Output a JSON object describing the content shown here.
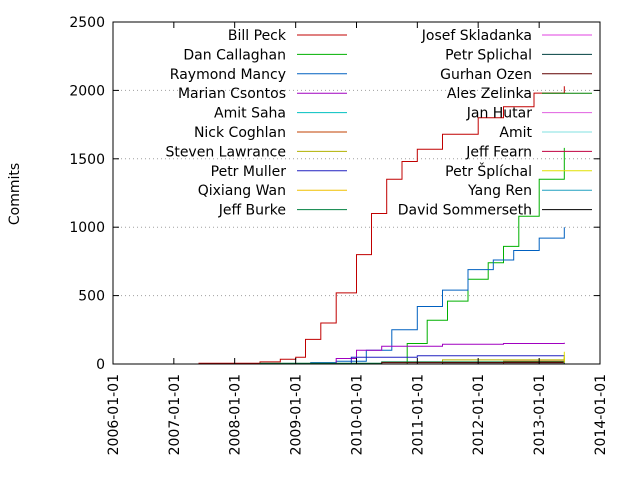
{
  "chart_data": {
    "type": "line",
    "title": "",
    "xlabel": "",
    "ylabel": "Commits",
    "xlim": [
      "2006-01-01",
      "2014-01-01"
    ],
    "ylim": [
      0,
      2500
    ],
    "x_ticks": [
      "2006-01-01",
      "2007-01-01",
      "2008-01-01",
      "2009-01-01",
      "2010-01-01",
      "2011-01-01",
      "2012-01-01",
      "2013-01-01",
      "2014-01-01"
    ],
    "y_ticks": [
      0,
      500,
      1000,
      1500,
      2000,
      2500
    ],
    "grid": "horizontal dotted at 500, 1000, 1500, 2000",
    "legend": "top, two columns",
    "series": [
      {
        "name": "Bill Peck",
        "color": "#c00000",
        "points": [
          [
            "2006-05-01",
            0
          ],
          [
            "2007-06-01",
            5
          ],
          [
            "2008-06-01",
            15
          ],
          [
            "2008-10-01",
            35
          ],
          [
            "2009-01-01",
            50
          ],
          [
            "2009-03-01",
            180
          ],
          [
            "2009-06-01",
            300
          ],
          [
            "2009-09-01",
            520
          ],
          [
            "2010-01-01",
            800
          ],
          [
            "2010-04-01",
            1100
          ],
          [
            "2010-07-01",
            1350
          ],
          [
            "2010-10-01",
            1480
          ],
          [
            "2011-01-01",
            1570
          ],
          [
            "2011-06-01",
            1680
          ],
          [
            "2012-01-01",
            1800
          ],
          [
            "2012-06-01",
            1880
          ],
          [
            "2012-12-01",
            1980
          ],
          [
            "2013-06-01",
            2030
          ]
        ]
      },
      {
        "name": "Dan Callaghan",
        "color": "#00b000",
        "points": [
          [
            "2010-09-01",
            0
          ],
          [
            "2010-11-01",
            150
          ],
          [
            "2011-03-01",
            320
          ],
          [
            "2011-07-01",
            460
          ],
          [
            "2011-11-01",
            620
          ],
          [
            "2012-03-01",
            740
          ],
          [
            "2012-06-01",
            860
          ],
          [
            "2012-09-01",
            1080
          ],
          [
            "2013-01-01",
            1350
          ],
          [
            "2013-06-01",
            1580
          ]
        ]
      },
      {
        "name": "Raymond Mancy",
        "color": "#0060c0",
        "points": [
          [
            "2009-01-01",
            0
          ],
          [
            "2009-04-01",
            10
          ],
          [
            "2009-09-01",
            20
          ],
          [
            "2010-03-01",
            100
          ],
          [
            "2010-08-01",
            250
          ],
          [
            "2011-01-01",
            420
          ],
          [
            "2011-06-01",
            540
          ],
          [
            "2011-11-01",
            690
          ],
          [
            "2012-04-01",
            760
          ],
          [
            "2012-08-01",
            830
          ],
          [
            "2013-01-01",
            920
          ],
          [
            "2013-06-01",
            1000
          ]
        ]
      },
      {
        "name": "Marian Csontos",
        "color": "#a000c0",
        "points": [
          [
            "2009-07-01",
            0
          ],
          [
            "2009-09-01",
            40
          ],
          [
            "2010-01-01",
            100
          ],
          [
            "2010-06-01",
            130
          ],
          [
            "2011-06-01",
            145
          ],
          [
            "2012-06-01",
            150
          ],
          [
            "2013-06-01",
            155
          ]
        ]
      },
      {
        "name": "Amit Saha",
        "color": "#00c0c0",
        "points": [
          [
            "2012-06-01",
            0
          ],
          [
            "2013-06-01",
            40
          ]
        ]
      },
      {
        "name": "Nick Coghlan",
        "color": "#c04000",
        "points": [
          [
            "2011-06-01",
            0
          ],
          [
            "2012-06-01",
            20
          ],
          [
            "2013-06-01",
            50
          ]
        ]
      },
      {
        "name": "Steven Lawrance",
        "color": "#b0b000",
        "points": [
          [
            "2009-01-01",
            0
          ],
          [
            "2011-06-01",
            30
          ],
          [
            "2013-06-01",
            60
          ]
        ]
      },
      {
        "name": "Petr Muller",
        "color": "#2020c0",
        "points": [
          [
            "2009-06-01",
            0
          ],
          [
            "2009-12-01",
            50
          ],
          [
            "2011-01-01",
            60
          ],
          [
            "2013-06-01",
            65
          ]
        ]
      },
      {
        "name": "Qixiang Wan",
        "color": "#f0c000",
        "points": [
          [
            "2012-06-01",
            0
          ],
          [
            "2013-06-01",
            30
          ]
        ]
      },
      {
        "name": "Jeff Burke",
        "color": "#008040",
        "points": [
          [
            "2006-05-01",
            0
          ],
          [
            "2008-06-01",
            5
          ],
          [
            "2010-06-01",
            15
          ],
          [
            "2013-06-01",
            25
          ]
        ]
      },
      {
        "name": "Josef Skladanka",
        "color": "#e040e0",
        "points": [
          [
            "2012-10-01",
            0
          ],
          [
            "2013-06-01",
            25
          ]
        ]
      },
      {
        "name": "Petr Splichal",
        "color": "#004040",
        "points": [
          [
            "2009-06-01",
            0
          ],
          [
            "2011-06-01",
            10
          ],
          [
            "2013-06-01",
            20
          ]
        ]
      },
      {
        "name": "Gurhan Ozen",
        "color": "#600000",
        "points": [
          [
            "2008-06-01",
            0
          ],
          [
            "2010-06-01",
            10
          ],
          [
            "2013-06-01",
            15
          ]
        ]
      },
      {
        "name": "Ales Zelinka",
        "color": "#008000",
        "points": [
          [
            "2010-06-01",
            0
          ],
          [
            "2013-06-01",
            15
          ]
        ]
      },
      {
        "name": "Jan Hutar",
        "color": "#e060e0",
        "points": [
          [
            "2011-06-01",
            0
          ],
          [
            "2013-06-01",
            10
          ]
        ]
      },
      {
        "name": "Amit",
        "color": "#80e0e0",
        "points": [
          [
            "2012-06-01",
            0
          ],
          [
            "2013-06-01",
            10
          ]
        ]
      },
      {
        "name": "Jeff Fearn",
        "color": "#c00040",
        "points": [
          [
            "2011-06-01",
            0
          ],
          [
            "2013-06-01",
            10
          ]
        ]
      },
      {
        "name": "Petr Šplíchal",
        "color": "#e0e000",
        "points": [
          [
            "2013-01-01",
            0
          ],
          [
            "2013-06-01",
            90
          ]
        ]
      },
      {
        "name": "Yang Ren",
        "color": "#20a0c0",
        "points": [
          [
            "2012-06-01",
            0
          ],
          [
            "2013-06-01",
            10
          ]
        ]
      },
      {
        "name": "David Sommerseth",
        "color": "#000000",
        "points": [
          [
            "2012-06-01",
            0
          ],
          [
            "2013-06-01",
            5
          ]
        ]
      }
    ]
  }
}
